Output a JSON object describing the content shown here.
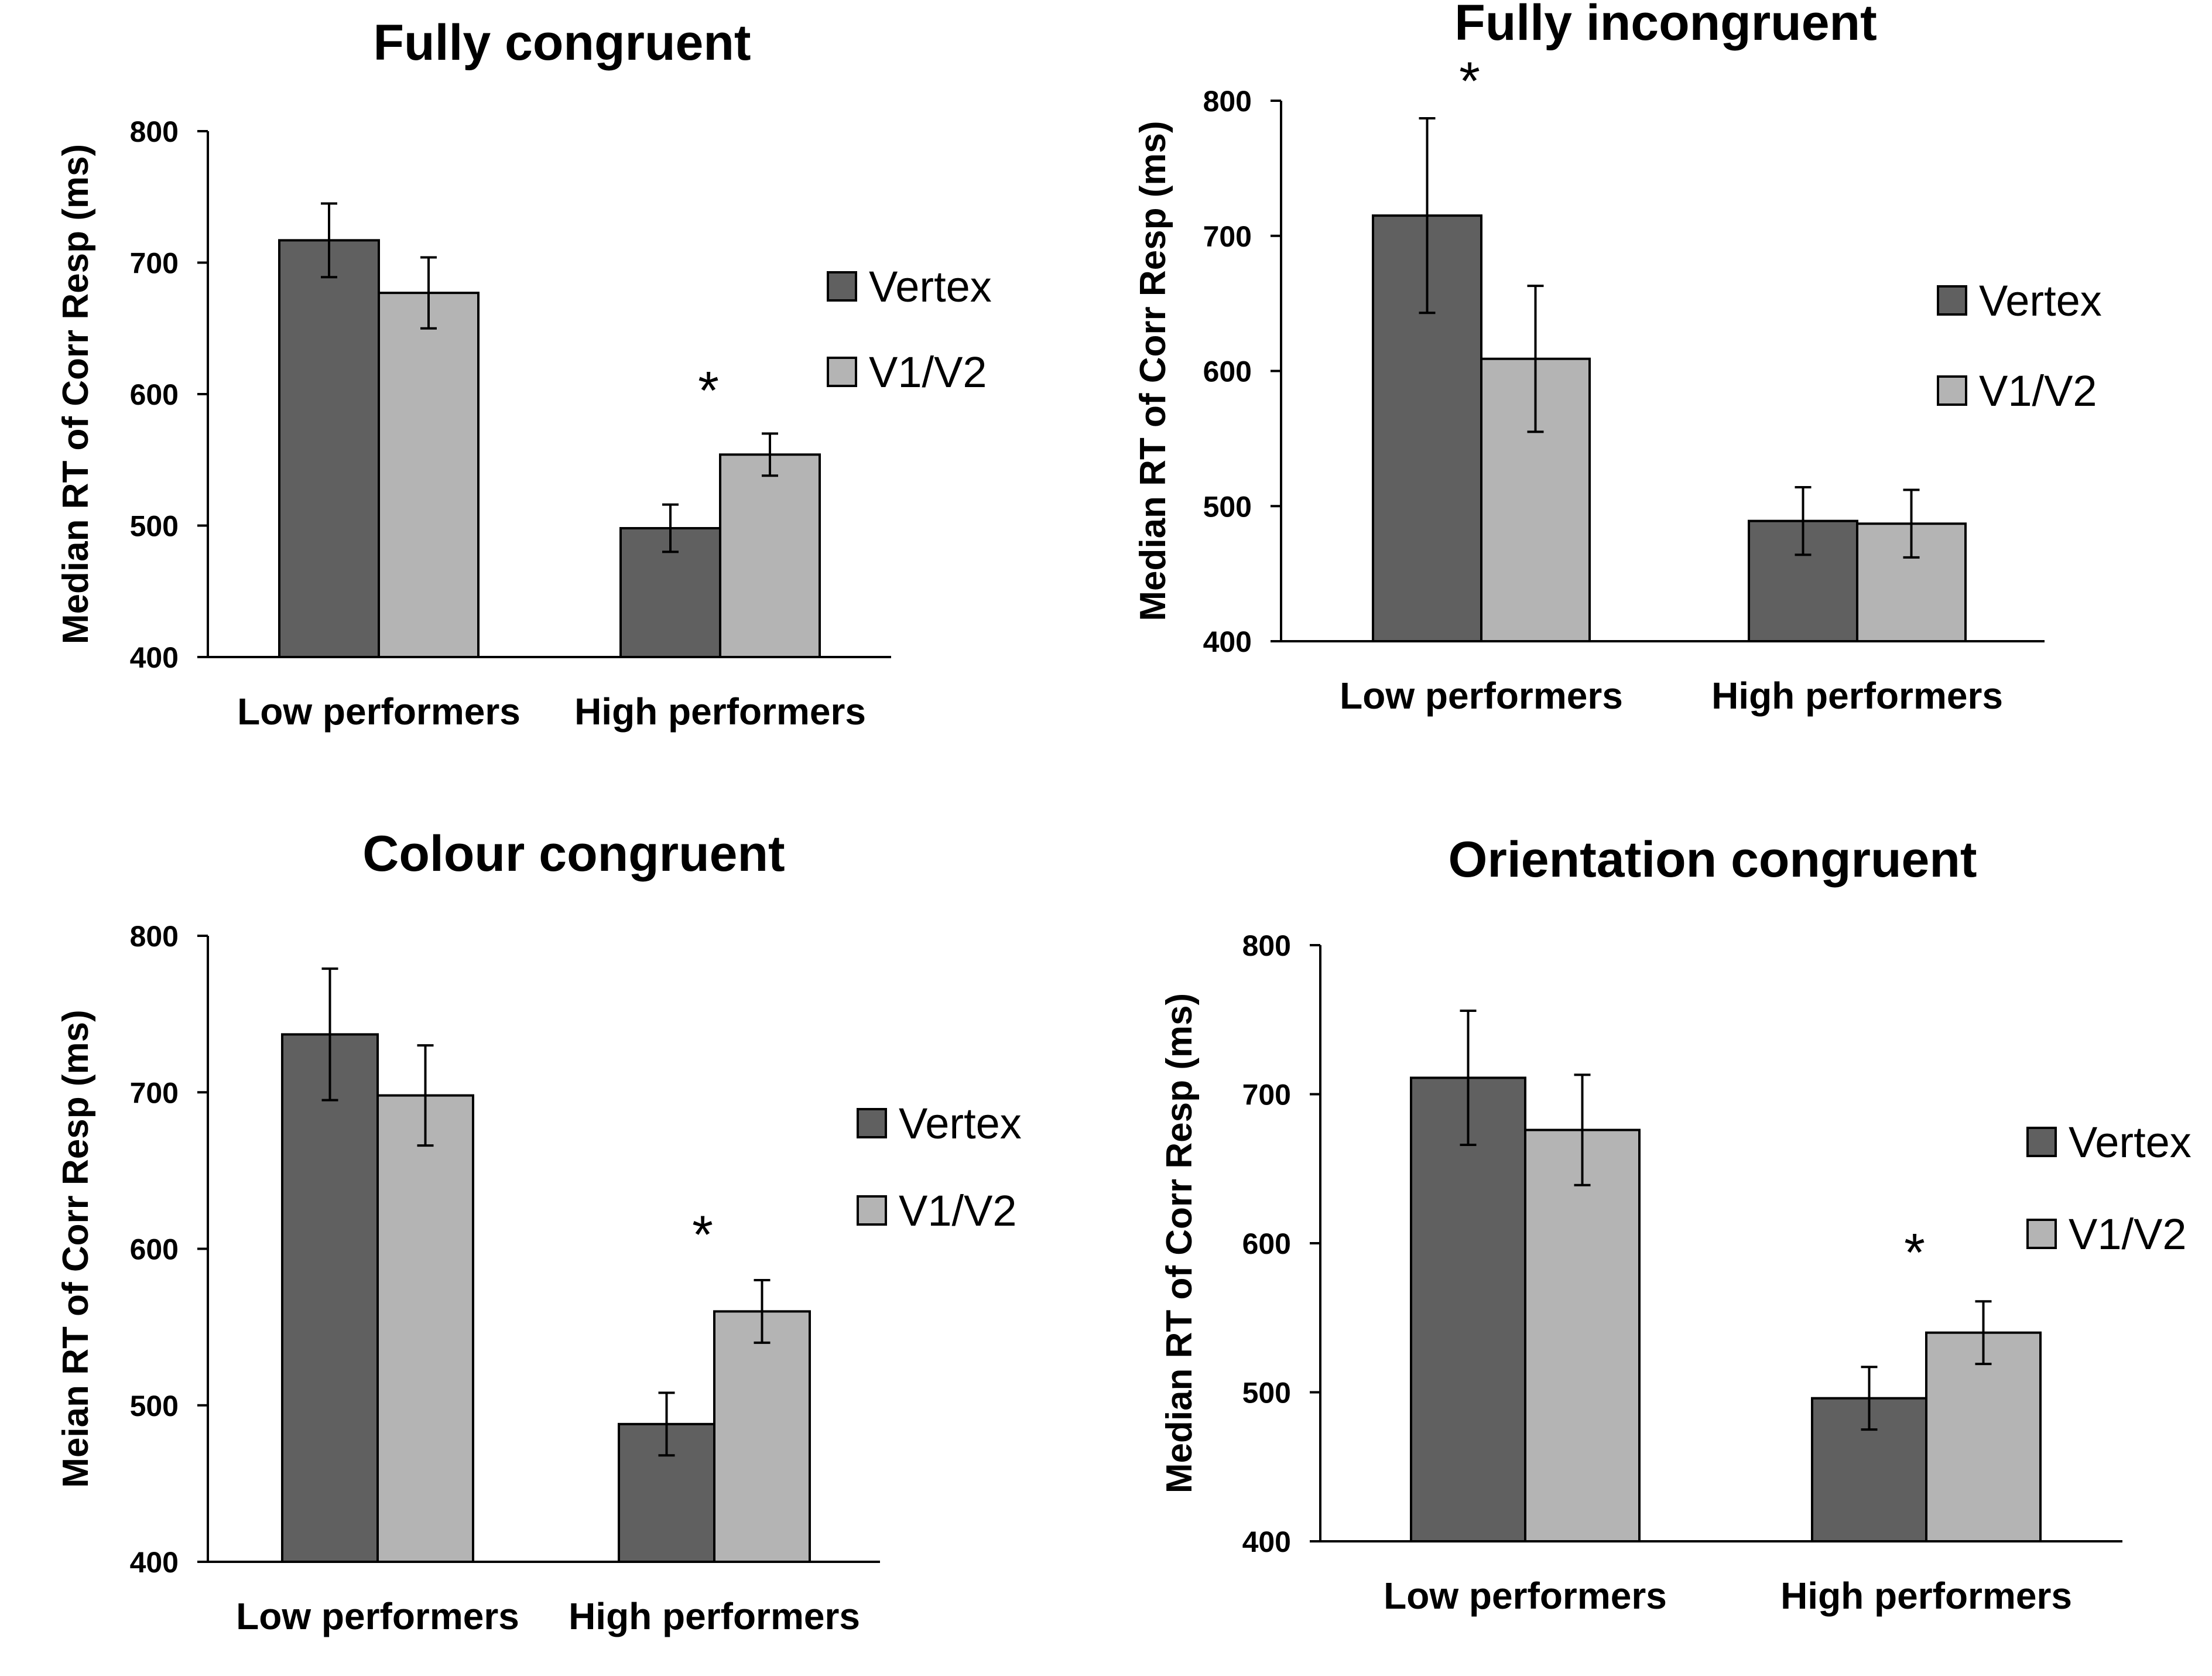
{
  "chart_data": [
    {
      "type": "bar",
      "title": "Fully congruent",
      "ylabel": "Median RT of Corr Resp (ms)",
      "ylim": [
        400,
        800
      ],
      "yticks": [
        "400",
        "500",
        "600",
        "700",
        "800"
      ],
      "categories": [
        "Low performers",
        "High performers"
      ],
      "series": [
        {
          "name": "Vertex",
          "values": [
            717,
            498
          ],
          "errors": [
            28,
            18
          ],
          "color": "#606060"
        },
        {
          "name": "V1/V2",
          "values": [
            677,
            554
          ],
          "errors": [
            27,
            16
          ],
          "color": "#b4b4b4"
        }
      ],
      "legend_position": "right",
      "significance": [
        {
          "category": "High performers",
          "label": "*"
        }
      ]
    },
    {
      "type": "bar",
      "title": "Fully incongruent",
      "ylabel": "Median RT of Corr Resp  (ms)",
      "ylim": [
        400,
        800
      ],
      "yticks": [
        "400",
        "500",
        "600",
        "700",
        "800"
      ],
      "categories": [
        "Low performers",
        "High performers"
      ],
      "series": [
        {
          "name": "Vertex",
          "values": [
            715,
            489
          ],
          "errors": [
            72,
            25
          ],
          "color": "#606060"
        },
        {
          "name": "V1/V2",
          "values": [
            609,
            487
          ],
          "errors": [
            54,
            25
          ],
          "color": "#b4b4b4"
        }
      ],
      "legend_position": "right",
      "significance": [
        {
          "category": "Low performers",
          "label": "*"
        }
      ]
    },
    {
      "type": "bar",
      "title": "Colour congruent",
      "ylabel": "Meian RT of Corr Resp (ms)",
      "ylim": [
        400,
        800
      ],
      "yticks": [
        "400",
        "500",
        "600",
        "700",
        "800"
      ],
      "categories": [
        "Low performers",
        "High performers"
      ],
      "series": [
        {
          "name": "Vertex",
          "values": [
            737,
            488
          ],
          "errors": [
            42,
            20
          ],
          "color": "#606060"
        },
        {
          "name": "V1/V2",
          "values": [
            698,
            560
          ],
          "errors": [
            32,
            20
          ],
          "color": "#b4b4b4"
        }
      ],
      "legend_position": "right",
      "significance": [
        {
          "category": "High performers",
          "label": "*"
        }
      ]
    },
    {
      "type": "bar",
      "title": "Orientation congruent",
      "ylabel": "Median RT of Corr Resp (ms)",
      "ylim": [
        400,
        800
      ],
      "yticks": [
        "400",
        "500",
        "600",
        "700",
        "800"
      ],
      "categories": [
        "Low performers",
        "High performers"
      ],
      "series": [
        {
          "name": "Vertex",
          "values": [
            711,
            496
          ],
          "errors": [
            45,
            21
          ],
          "color": "#606060"
        },
        {
          "name": "V1/V2",
          "values": [
            676,
            540
          ],
          "errors": [
            37,
            21
          ],
          "color": "#b4b4b4"
        }
      ],
      "legend_position": "right",
      "significance": [
        {
          "category": "High performers",
          "label": "*"
        }
      ]
    }
  ]
}
